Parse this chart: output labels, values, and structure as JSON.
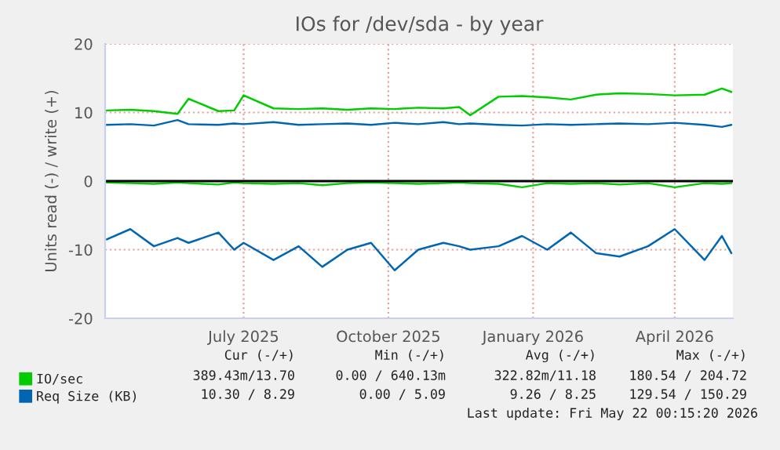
{
  "chart_data": {
    "type": "line",
    "title": "IOs for /dev/sda - by year",
    "ylabel": "Units read (-) / write (+)",
    "x": [
      "2025-04-05",
      "2025-04-20",
      "2025-05-05",
      "2025-05-20",
      "2025-05-27",
      "2025-06-15",
      "2025-06-25",
      "2025-07-01",
      "2025-07-20",
      "2025-08-05",
      "2025-08-20",
      "2025-09-05",
      "2025-09-20",
      "2025-10-05",
      "2025-10-20",
      "2025-11-05",
      "2025-11-15",
      "2025-11-22",
      "2025-12-10",
      "2025-12-25",
      "2026-01-10",
      "2026-01-25",
      "2026-02-10",
      "2026-02-25",
      "2026-03-15",
      "2026-04-01",
      "2026-04-20",
      "2026-05-01",
      "2026-05-07"
    ],
    "series": [
      {
        "name": "IO/sec",
        "color": "#00cc00",
        "values": [
          10.3,
          10.4,
          10.2,
          9.8,
          12.0,
          10.2,
          10.3,
          12.5,
          10.6,
          10.5,
          10.6,
          10.4,
          10.6,
          10.5,
          10.7,
          10.6,
          10.8,
          9.6,
          12.3,
          12.4,
          12.2,
          11.9,
          12.6,
          12.8,
          12.7,
          12.5,
          12.6,
          13.5,
          13.0
        ]
      },
      {
        "color": "#00cc00",
        "values": [
          -0.2,
          -0.3,
          -0.4,
          -0.2,
          -0.3,
          -0.5,
          -0.2,
          -0.3,
          -0.4,
          -0.3,
          -0.6,
          -0.3,
          -0.2,
          -0.3,
          -0.4,
          -0.3,
          -0.2,
          -0.3,
          -0.4,
          -0.9,
          -0.3,
          -0.4,
          -0.3,
          -0.5,
          -0.3,
          -0.9,
          -0.3,
          -0.4,
          -0.3
        ]
      },
      {
        "name": "Req Size (KB)",
        "color": "#0066b3",
        "values": [
          8.2,
          8.3,
          8.1,
          8.9,
          8.3,
          8.2,
          8.4,
          8.3,
          8.6,
          8.2,
          8.3,
          8.4,
          8.2,
          8.5,
          8.3,
          8.6,
          8.3,
          8.4,
          8.2,
          8.1,
          8.3,
          8.2,
          8.3,
          8.4,
          8.3,
          8.5,
          8.2,
          7.9,
          8.2
        ]
      },
      {
        "color": "#0066b3",
        "values": [
          -8.5,
          -7.0,
          -9.5,
          -8.3,
          -9.0,
          -7.5,
          -10.0,
          -9.0,
          -11.5,
          -9.5,
          -12.5,
          -10.0,
          -9.0,
          -13.0,
          -10.0,
          -9.0,
          -9.5,
          -10.0,
          -9.5,
          -8.0,
          -10.0,
          -7.5,
          -10.5,
          -11.0,
          -9.5,
          -7.0,
          -11.5,
          -8.0,
          -10.5
        ]
      }
    ],
    "xlim": [
      "2025-04-04",
      "2026-05-08"
    ],
    "xticks": [
      {
        "value": "2025-07-01",
        "label": "July 2025"
      },
      {
        "value": "2025-10-01",
        "label": "October 2025"
      },
      {
        "value": "2026-01-01",
        "label": "January 2026"
      },
      {
        "value": "2026-04-01",
        "label": "April 2026"
      }
    ],
    "ylim": [
      -20,
      20
    ],
    "yticks": [
      -20,
      -10,
      0,
      10,
      20
    ],
    "ref_lines": [
      {
        "axis": "y",
        "value": 0,
        "color": "#000000"
      }
    ],
    "grid": true,
    "legend": "bottom",
    "marker": "none",
    "line_style": "solid",
    "annotations": [
      "Cur (-/+)",
      "Min (-/+)",
      "Avg (-/+)",
      "Max (-/+)",
      "389.43m/13.70",
      "0.00 / 640.13m",
      "322.82m/11.18",
      "180.54 / 204.72",
      "10.30 / 8.29",
      "0.00 / 5.09",
      "9.26 / 8.25",
      "129.54 / 150.29",
      "Last update: Fri May 22 00:15:20 2026"
    ]
  }
}
